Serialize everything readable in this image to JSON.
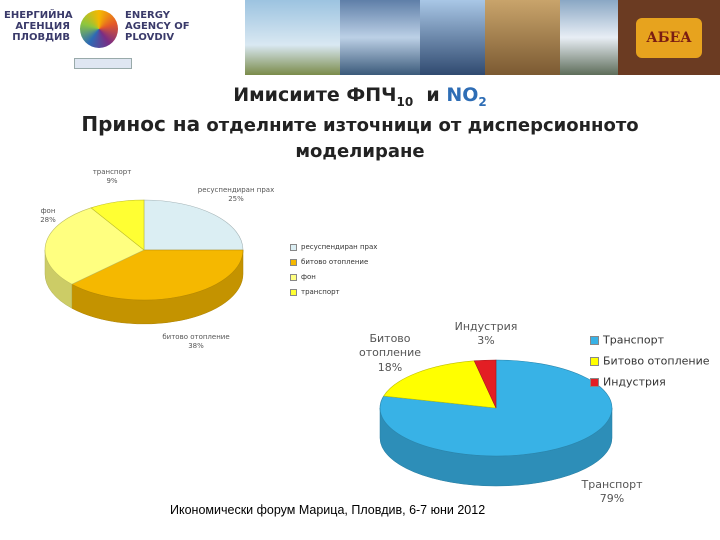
{
  "header": {
    "agency_bg": "ЕНЕРГИЙНА АГЕНЦИЯ ПЛОВДИВ",
    "agency_en": "ENERGY AGENCY OF PLOVDIV",
    "badge": "АБЕА"
  },
  "title": {
    "pm": "Имисиите ФПЧ",
    "pm_sub": "10",
    "and": "и",
    "no2": "NO",
    "no2_sub": "2",
    "subtitle_lead": "Принос на",
    "subtitle": "отделните източници от дисперсионното моделиране"
  },
  "footer": "Икономически форум Марица, Пловдив, 6-7 юни 2012",
  "chart_data": [
    {
      "type": "pie",
      "categories": [
        "ресуспендиран прах",
        "битово отопление",
        "фон",
        "транспорт"
      ],
      "values": [
        25,
        38,
        28,
        9
      ],
      "value_labels": [
        "25%",
        "38%",
        "28%",
        "9%"
      ],
      "colors": [
        "#dbeef3",
        "#f5b800",
        "#ffff80",
        "#ffff33"
      ],
      "legend": "right"
    },
    {
      "type": "pie",
      "categories": [
        "Транспорт",
        "Битово отопление",
        "Индустрия"
      ],
      "values": [
        79,
        18,
        3
      ],
      "value_labels": [
        "79%",
        "18%",
        "3%"
      ],
      "colors": [
        "#38b2e6",
        "#ffff00",
        "#e31e24"
      ],
      "legend": "right"
    }
  ]
}
